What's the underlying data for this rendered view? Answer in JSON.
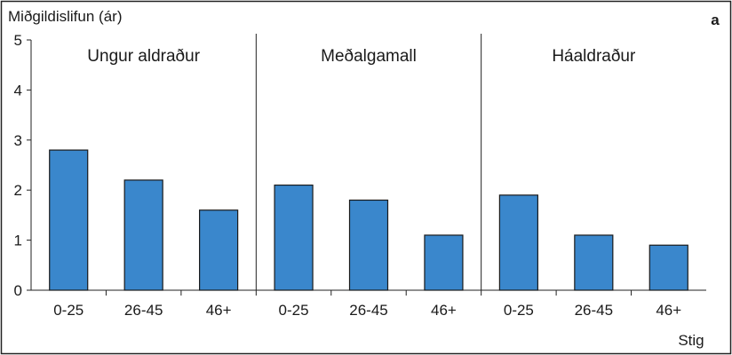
{
  "chart_data": {
    "type": "bar",
    "panel_letter": "a",
    "ylabel": "Miðgildislifun (ár)",
    "xlabel": "Stig",
    "ylim": [
      0,
      5
    ],
    "yticks": [
      "0",
      "1",
      "2",
      "3",
      "4",
      "5"
    ],
    "bar_color": "#3a87cc",
    "groups": [
      {
        "label": "Ungur aldraður",
        "categories": [
          "0-25",
          "26-45",
          "46+"
        ],
        "values": [
          2.8,
          2.2,
          1.6
        ]
      },
      {
        "label": "Meðalgamall",
        "categories": [
          "0-25",
          "26-45",
          "46+"
        ],
        "values": [
          2.1,
          1.8,
          1.1
        ]
      },
      {
        "label": "Háaldraður",
        "categories": [
          "0-25",
          "26-45",
          "46+"
        ],
        "values": [
          1.9,
          1.1,
          0.9
        ]
      }
    ]
  }
}
